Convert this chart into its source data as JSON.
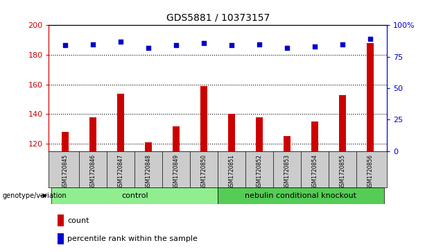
{
  "title": "GDS5881 / 10373157",
  "samples": [
    "GSM1720845",
    "GSM1720846",
    "GSM1720847",
    "GSM1720848",
    "GSM1720849",
    "GSM1720850",
    "GSM1720851",
    "GSM1720852",
    "GSM1720853",
    "GSM1720854",
    "GSM1720855",
    "GSM1720856"
  ],
  "counts": [
    128,
    138,
    154,
    121,
    132,
    159,
    140,
    138,
    125,
    135,
    153,
    188
  ],
  "percentiles": [
    84,
    85,
    87,
    82,
    84,
    86,
    84,
    85,
    82,
    83,
    85,
    89
  ],
  "ylim_left": [
    115,
    200
  ],
  "ylim_right": [
    0,
    100
  ],
  "yticks_left": [
    120,
    140,
    160,
    180,
    200
  ],
  "yticks_right": [
    0,
    25,
    50,
    75,
    100
  ],
  "ytick_labels_right": [
    "0",
    "25",
    "50",
    "75",
    "100%"
  ],
  "bar_color": "#cc0000",
  "dot_color": "#0000cc",
  "bar_bg_color": "#cccccc",
  "plot_bg_color": "#ffffff",
  "control_color": "#90ee90",
  "ko_color": "#55cc55",
  "control_label": "control",
  "ko_label": "nebulin conditional knockout",
  "genotype_label": "genotype/variation",
  "legend_count": "count",
  "legend_percentile": "percentile rank within the sample",
  "control_samples": 6,
  "ko_samples": 6,
  "bar_width": 0.25
}
